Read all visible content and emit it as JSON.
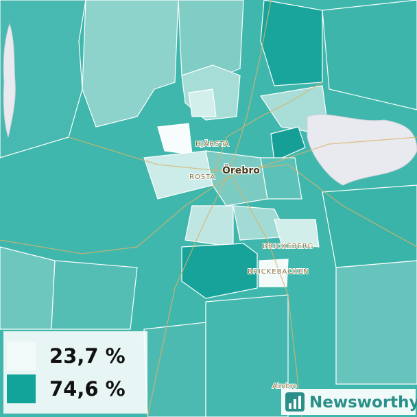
{
  "map": {
    "places": [
      "HJÄRSTA",
      "ROSTA",
      "Örebro",
      "BRICKEBERG",
      "BRICKEBACKEN",
      "Almbro"
    ]
  },
  "legend": {
    "items": [
      {
        "label": "23,7 %",
        "color": "#f2fbfa"
      },
      {
        "label": "74,6 %",
        "color": "#12a39a"
      }
    ]
  },
  "logo": "Newsworthy"
}
